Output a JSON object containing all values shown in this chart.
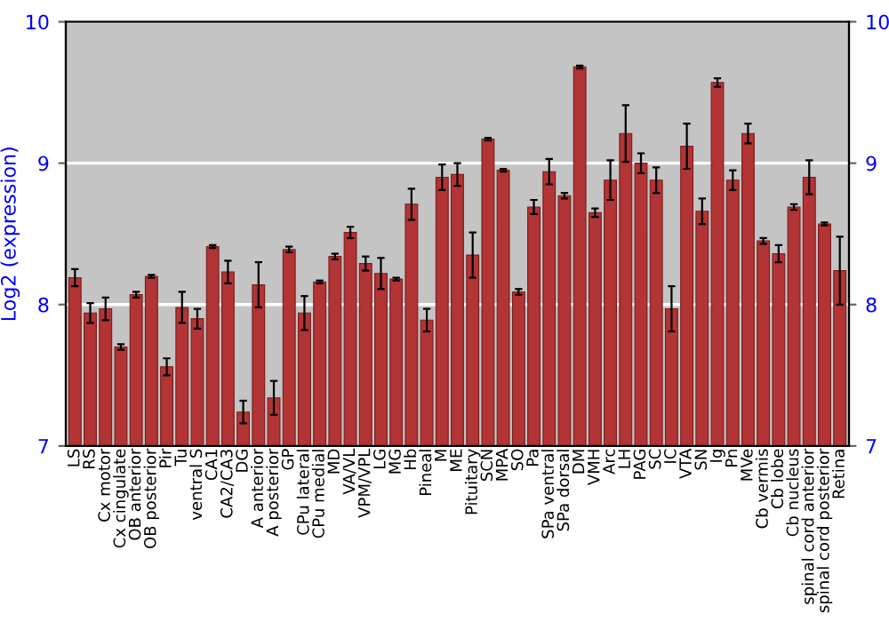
{
  "chart_data": {
    "type": "bar",
    "ylabel": "Log2 (expression)",
    "categories": [
      "LS",
      "RS",
      "Cx motor",
      "Cx cingulate",
      "OB anterior",
      "OB posterior",
      "Pir",
      "Tu",
      "ventral S",
      "CA1",
      "CA2/CA3",
      "DG",
      "A anterior",
      "A posterior",
      "GP",
      "CPu lateral",
      "CPu medial",
      "MD",
      "VA/VL",
      "VPM/VPL",
      "LG",
      "MG",
      "Hb",
      "Pineal",
      "M",
      "ME",
      "Pituitary",
      "SCN",
      "MPA",
      "SO",
      "Pa",
      "SPa ventral",
      "SPa dorsal",
      "DM",
      "VMH",
      "Arc",
      "LH",
      "PAG",
      "SC",
      "IC",
      "VTA",
      "SN",
      "Ig",
      "Pn",
      "MVe",
      "Cb vermis",
      "Cb lobe",
      "Cb nucleus",
      "spinal cord anterior",
      "spinal cord posterior",
      "Retina"
    ],
    "series": [
      {
        "color": "#b23434",
        "values": [
          8.19,
          7.94,
          7.97,
          7.7,
          8.07,
          8.2,
          7.56,
          7.98,
          7.9,
          8.41,
          8.23,
          7.24,
          8.14,
          7.34,
          8.39,
          7.94,
          8.16,
          8.34,
          8.51,
          8.29,
          8.22,
          8.18,
          8.71,
          7.89,
          8.9,
          8.92,
          8.35,
          9.17,
          8.95,
          8.09,
          8.69,
          8.94,
          8.77,
          9.68,
          8.65,
          8.88,
          9.21,
          9.0,
          8.88,
          7.97,
          9.12,
          8.66,
          9.57,
          8.88,
          9.21,
          8.45,
          8.36,
          8.69,
          8.9,
          8.57,
          8.24
        ],
        "errors": [
          0.06,
          0.07,
          0.08,
          0.02,
          0.02,
          0.01,
          0.06,
          0.11,
          0.07,
          0.01,
          0.08,
          0.08,
          0.16,
          0.12,
          0.02,
          0.12,
          0.01,
          0.02,
          0.04,
          0.05,
          0.11,
          0.01,
          0.11,
          0.08,
          0.09,
          0.08,
          0.16,
          0.01,
          0.01,
          0.02,
          0.05,
          0.09,
          0.02,
          0.01,
          0.03,
          0.14,
          0.2,
          0.07,
          0.09,
          0.16,
          0.16,
          0.09,
          0.03,
          0.07,
          0.07,
          0.02,
          0.06,
          0.02,
          0.12,
          0.01,
          0.24
        ]
      }
    ],
    "ylim": [
      7,
      10
    ],
    "yticks": [
      7,
      8,
      9,
      10
    ],
    "y2lim": [
      7,
      10
    ],
    "y2ticks": [
      7,
      8,
      9,
      10
    ],
    "grid": "y"
  }
}
